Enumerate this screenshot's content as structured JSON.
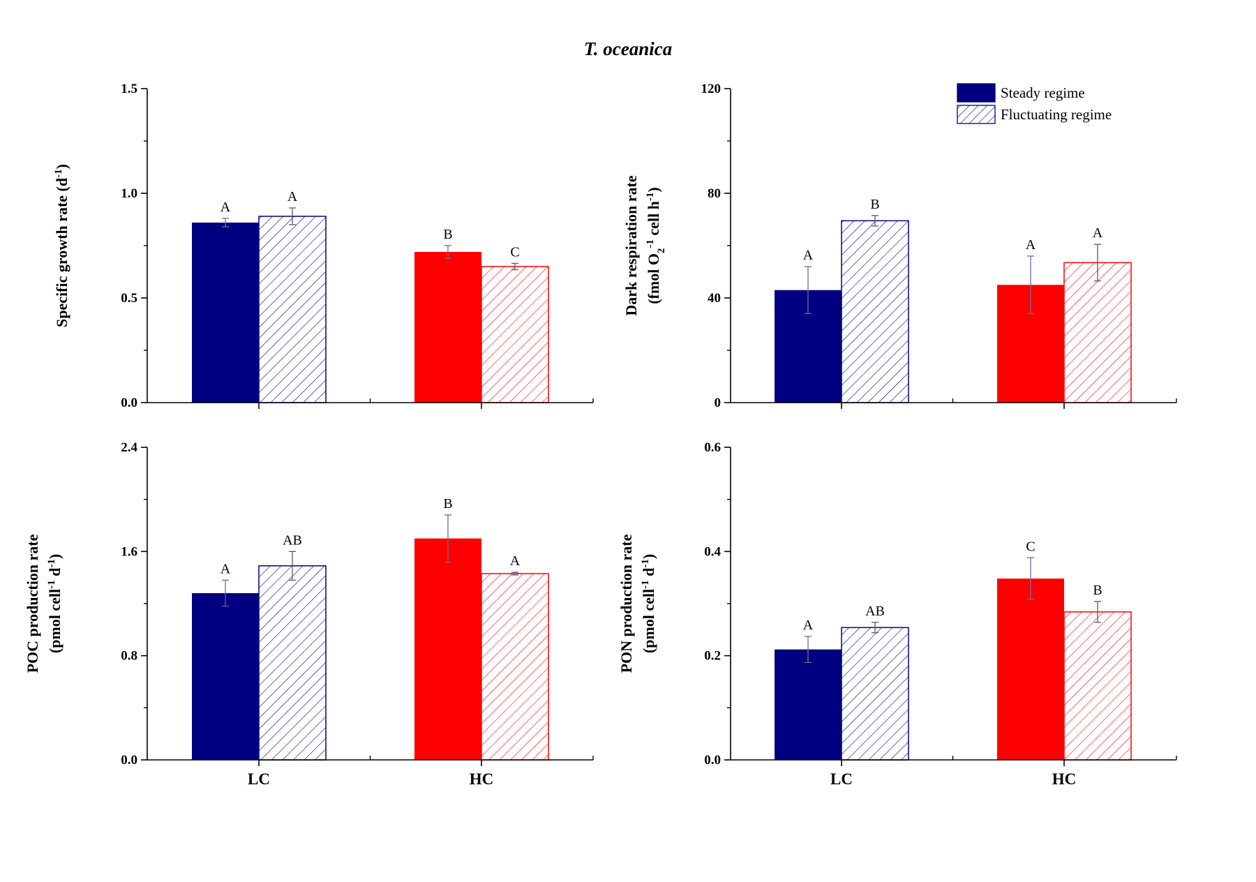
{
  "figure_title": "T. oceanica",
  "colors": {
    "LC": "#000080",
    "HC": "#ff0000"
  },
  "legend": [
    {
      "label": "Steady regime",
      "style": "solid"
    },
    {
      "label": "Fluctuating regime",
      "style": "hatched"
    }
  ],
  "chart_data": [
    {
      "type": "bar",
      "ylabel_lines": [
        {
          "text": "Specific growth rate (d",
          "sup": "-1",
          "after": ")"
        }
      ],
      "ylim": [
        0,
        1.5
      ],
      "yticks": [
        "0.0",
        "0.5",
        "1.0",
        "1.5"
      ],
      "categories": [
        "LC",
        "HC"
      ],
      "series": [
        {
          "name": "Steady regime",
          "values": [
            0.86,
            0.72
          ],
          "errors": [
            0.02,
            0.03
          ],
          "sig": [
            "A",
            "B"
          ]
        },
        {
          "name": "Fluctuating regime",
          "values": [
            0.89,
            0.65
          ],
          "errors": [
            0.04,
            0.015
          ],
          "sig": [
            "A",
            "C"
          ]
        }
      ]
    },
    {
      "type": "bar",
      "ylabel_lines": [
        {
          "text": "Dark respiration rate"
        },
        {
          "text": "(fmol O",
          "sub": "2",
          "text2": " cell",
          "sup": "-1",
          "text3": " h",
          "sup2": "-1",
          "after": ")"
        }
      ],
      "ylim": [
        0,
        120
      ],
      "yticks": [
        "0",
        "40",
        "80",
        "120"
      ],
      "categories": [
        "LC",
        "HC"
      ],
      "series": [
        {
          "name": "Steady regime",
          "values": [
            43,
            45
          ],
          "errors": [
            9,
            11
          ],
          "sig": [
            "A",
            "A"
          ]
        },
        {
          "name": "Fluctuating regime",
          "values": [
            69.5,
            53.5
          ],
          "errors": [
            2,
            7
          ],
          "sig": [
            "B",
            "A"
          ]
        }
      ]
    },
    {
      "type": "bar",
      "ylabel_lines": [
        {
          "text": "POC production rate"
        },
        {
          "text": "(pmol cell",
          "sup": "-1",
          "text2": " d",
          "sup2": "-1",
          "after": ")"
        }
      ],
      "ylim": [
        0,
        2.4
      ],
      "yticks": [
        "0.0",
        "0.8",
        "1.6",
        "2.4"
      ],
      "categories": [
        "LC",
        "HC"
      ],
      "series": [
        {
          "name": "Steady regime",
          "values": [
            1.28,
            1.7
          ],
          "errors": [
            0.1,
            0.18
          ],
          "sig": [
            "A",
            "B"
          ]
        },
        {
          "name": "Fluctuating regime",
          "values": [
            1.49,
            1.43
          ],
          "errors": [
            0.11,
            0.01
          ],
          "sig": [
            "AB",
            "A"
          ]
        }
      ]
    },
    {
      "type": "bar",
      "ylabel_lines": [
        {
          "text": "PON production rate"
        },
        {
          "text": "(pmol cell",
          "sup": "-1",
          "text2": " d",
          "sup2": "-1",
          "after": ")"
        }
      ],
      "ylim": [
        0,
        0.6
      ],
      "yticks": [
        "0.0",
        "0.2",
        "0.4",
        "0.6"
      ],
      "categories": [
        "LC",
        "HC"
      ],
      "series": [
        {
          "name": "Steady regime",
          "values": [
            0.212,
            0.348
          ],
          "errors": [
            0.025,
            0.04
          ],
          "sig": [
            "A",
            "C"
          ]
        },
        {
          "name": "Fluctuating regime",
          "values": [
            0.254,
            0.284
          ],
          "errors": [
            0.01,
            0.02
          ],
          "sig": [
            "AB",
            "B"
          ]
        }
      ]
    }
  ]
}
